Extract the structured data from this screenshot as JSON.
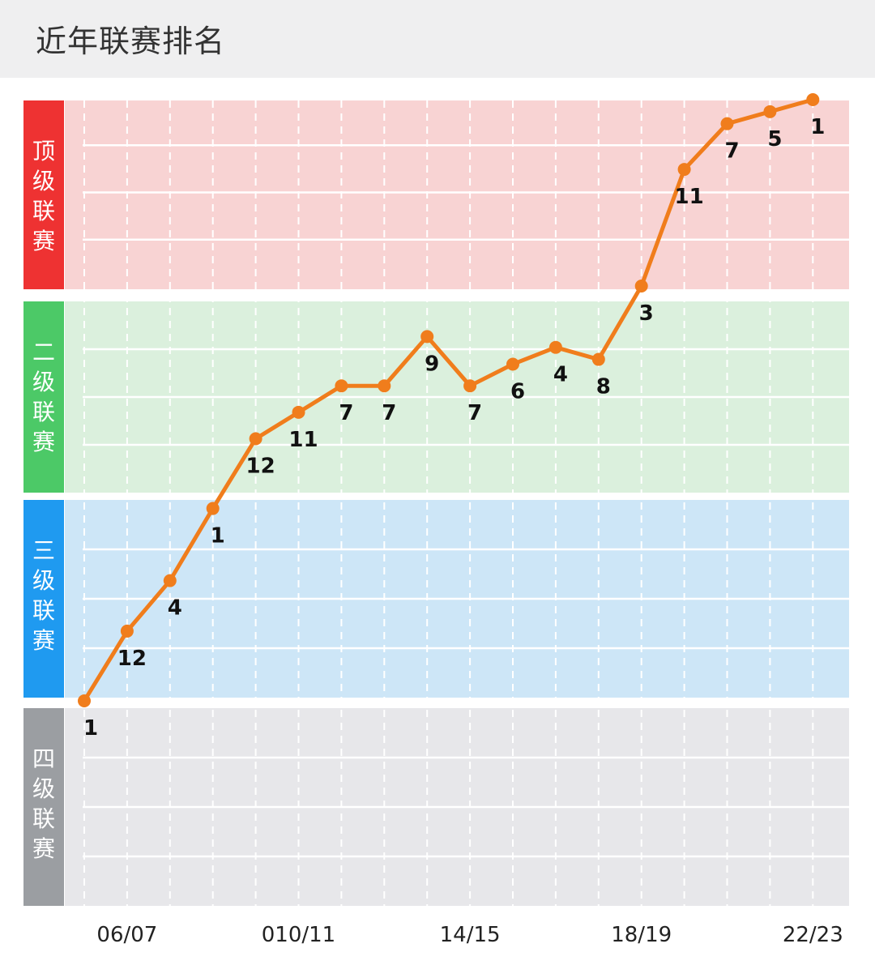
{
  "header": {
    "title": "近年联赛排名"
  },
  "chart_data": {
    "type": "line",
    "title": "近年联赛排名",
    "xlabel": "",
    "ylabel": "",
    "x_tick_labels": [
      "06/07",
      "010/11",
      "14/15",
      "18/19",
      "22/23"
    ],
    "grid": true,
    "bands": [
      {
        "label": "顶级联赛",
        "color": "#ee3232",
        "fill": "#f8d3d3"
      },
      {
        "label": "二级联赛",
        "color": "#4cc967",
        "fill": "#dbf0dd"
      },
      {
        "label": "三级联赛",
        "color": "#1f9af0",
        "fill": "#cde6f7"
      },
      {
        "label": "四级联赛",
        "color": "#9b9ea2",
        "fill": "#e7e7ea"
      }
    ],
    "series": [
      {
        "color": "#f07d1c",
        "level_position": [
          0,
          0.58,
          1.0,
          1.6,
          2.18,
          2.4,
          2.62,
          2.62,
          3.03,
          2.62,
          2.8,
          2.94,
          2.84,
          3.45,
          4.42,
          4.8,
          4.9,
          5.0
        ],
        "labels": [
          "1",
          "12",
          "4",
          "1",
          "12",
          "11",
          "7",
          "7",
          "9",
          "7",
          "6",
          "4",
          "8",
          "3",
          "11",
          "7",
          "5",
          "1"
        ]
      }
    ]
  }
}
